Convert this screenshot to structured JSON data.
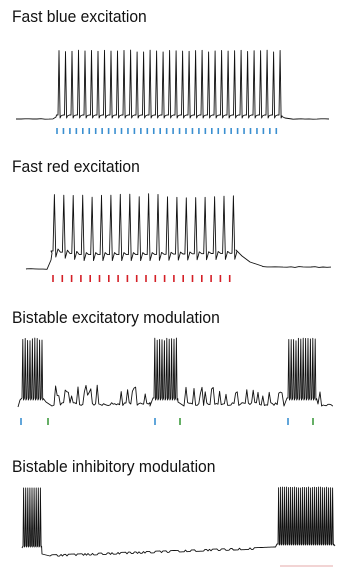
{
  "panels": [
    {
      "title": "Fast blue excitation"
    },
    {
      "title": "Fast red excitation"
    },
    {
      "title": "Bistable excitatory modulation"
    },
    {
      "title": "Bistable inhibitory modulation"
    }
  ],
  "colors": {
    "trace": "#111111",
    "blue_pulse": "#3a8fd0",
    "red_pulse": "#d41f26",
    "green_pulse": "#3f9b3f",
    "faint_underline": "#e6a9a9"
  },
  "icons": {
    "pulse_marker": "vertical-tick",
    "trace": "voltage-trace"
  }
}
